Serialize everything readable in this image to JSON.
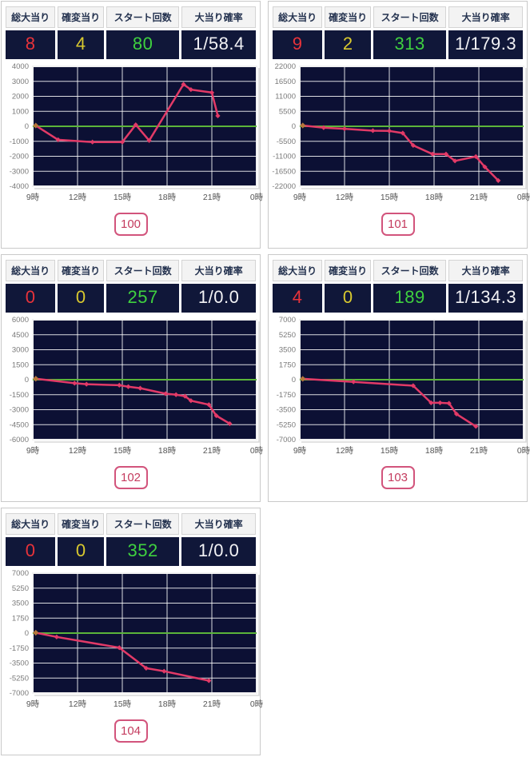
{
  "header_labels": [
    "総大当り",
    "確変当り",
    "スタート回数",
    "大当り確率"
  ],
  "colors": {
    "value_bg": "#101739",
    "label_bg": "#f3f3f3",
    "label_text": "#24324f",
    "total_hits_text": "#e8333a",
    "kakuhen_hits_text": "#d9c92f",
    "start_count_text": "#3fd13f",
    "hit_rate_text": "#f2f2f5",
    "plot_bg": "#0c1034",
    "grid_line": "#ffffff",
    "zero_line": "#5cb53a",
    "series_line": "#e23a67",
    "start_marker": "#b5763c",
    "badge_border": "#d2547c",
    "badge_text": "#c43b5e",
    "panel_border": "#c9c9c9",
    "ytick_text": "#7a7a7a",
    "xtick_text": "#555555"
  },
  "panels": [
    {
      "machine_no": "100",
      "total_hits": "8",
      "kakuhen_hits": "4",
      "start_count": "80",
      "hit_rate": "1/58.4"
    },
    {
      "machine_no": "101",
      "total_hits": "9",
      "kakuhen_hits": "2",
      "start_count": "313",
      "hit_rate": "1/179.3"
    },
    {
      "machine_no": "102",
      "total_hits": "0",
      "kakuhen_hits": "0",
      "start_count": "257",
      "hit_rate": "1/0.0"
    },
    {
      "machine_no": "103",
      "total_hits": "4",
      "kakuhen_hits": "0",
      "start_count": "189",
      "hit_rate": "1/134.3"
    },
    {
      "machine_no": "104",
      "total_hits": "0",
      "kakuhen_hits": "0",
      "start_count": "352",
      "hit_rate": "1/0.0"
    }
  ],
  "chart_data": [
    {
      "type": "line",
      "title": "100",
      "x_hours": [
        9.2,
        10.7,
        13.0,
        15.0,
        15.9,
        16.8,
        19.1,
        19.6,
        21.0,
        21.4
      ],
      "y": [
        50,
        -900,
        -1050,
        -1050,
        100,
        -950,
        2800,
        2450,
        2250,
        700
      ],
      "ylim": [
        -4000,
        4000
      ],
      "ytick_step": 1000,
      "ytick_labels": [
        "4000",
        "3000",
        "2000",
        "1000",
        "0",
        "-1000",
        "-2000",
        "-3000",
        "-4000"
      ],
      "xtick_labels": [
        "9時",
        "12時",
        "15時",
        "18時",
        "21時",
        "0時"
      ],
      "xtick_hours": [
        9,
        12,
        15,
        18,
        21,
        24
      ],
      "xlabel": "",
      "ylabel": "",
      "grid": true,
      "zero_line": true
    },
    {
      "type": "line",
      "title": "101",
      "x_hours": [
        9.2,
        10.6,
        12.0,
        13.9,
        15.0,
        15.9,
        16.6,
        17.9,
        18.8,
        19.4,
        20.8,
        21.4,
        22.3
      ],
      "y": [
        300,
        -500,
        -900,
        -1600,
        -1700,
        -2500,
        -7000,
        -10200,
        -10200,
        -12700,
        -11100,
        -14900,
        -19900
      ],
      "ylim": [
        -22000,
        22000
      ],
      "ytick_step": 5500,
      "ytick_labels": [
        "22000",
        "16500",
        "11000",
        "5500",
        "0",
        "-5500",
        "-11000",
        "-16500",
        "-22000"
      ],
      "xtick_labels": [
        "9時",
        "12時",
        "15時",
        "18時",
        "21時",
        "0時"
      ],
      "xtick_hours": [
        9,
        12,
        15,
        18,
        21,
        24
      ],
      "xlabel": "",
      "ylabel": "",
      "grid": true,
      "zero_line": true
    },
    {
      "type": "line",
      "title": "102",
      "x_hours": [
        9.2,
        11.8,
        12.6,
        14.8,
        15.4,
        16.2,
        17.9,
        18.6,
        19.2,
        19.6,
        20.8,
        21.3,
        22.2
      ],
      "y": [
        100,
        -350,
        -450,
        -550,
        -700,
        -850,
        -1400,
        -1500,
        -1650,
        -2100,
        -2500,
        -3600,
        -4400
      ],
      "ylim": [
        -6000,
        6000
      ],
      "ytick_step": 1500,
      "ytick_labels": [
        "6000",
        "4500",
        "3000",
        "1500",
        "0",
        "-1500",
        "-3000",
        "-4500",
        "-6000"
      ],
      "xtick_labels": [
        "9時",
        "12時",
        "15時",
        "18時",
        "21時",
        "0時"
      ],
      "xtick_hours": [
        9,
        12,
        15,
        18,
        21,
        24
      ],
      "xlabel": "",
      "ylabel": "",
      "grid": true,
      "zero_line": true
    },
    {
      "type": "line",
      "title": "103",
      "x_hours": [
        9.2,
        12.6,
        16.6,
        17.8,
        18.4,
        19.0,
        19.5,
        20.8
      ],
      "y": [
        100,
        -250,
        -700,
        -2700,
        -2700,
        -2750,
        -4000,
        -5450
      ],
      "ylim": [
        -7000,
        7000
      ],
      "ytick_step": 1750,
      "ytick_labels": [
        "7000",
        "5250",
        "3500",
        "1750",
        "0",
        "-1750",
        "-3500",
        "-5250",
        "-7000"
      ],
      "xtick_labels": [
        "9時",
        "12時",
        "15時",
        "18時",
        "21時",
        "0時"
      ],
      "xtick_hours": [
        9,
        12,
        15,
        18,
        21,
        24
      ],
      "xlabel": "",
      "ylabel": "",
      "grid": true,
      "zero_line": true
    },
    {
      "type": "line",
      "title": "104",
      "x_hours": [
        9.2,
        10.6,
        14.8,
        16.6,
        17.8,
        20.8
      ],
      "y": [
        50,
        -450,
        -1700,
        -4100,
        -4450,
        -5550
      ],
      "ylim": [
        -7000,
        7000
      ],
      "ytick_step": 1750,
      "ytick_labels": [
        "7000",
        "5250",
        "3500",
        "1750",
        "0",
        "-1750",
        "-3500",
        "-5250",
        "-7000"
      ],
      "xtick_labels": [
        "9時",
        "12時",
        "15時",
        "18時",
        "21時",
        "0時"
      ],
      "xtick_hours": [
        9,
        12,
        15,
        18,
        21,
        24
      ],
      "xlabel": "",
      "ylabel": "",
      "grid": true,
      "zero_line": true
    }
  ]
}
